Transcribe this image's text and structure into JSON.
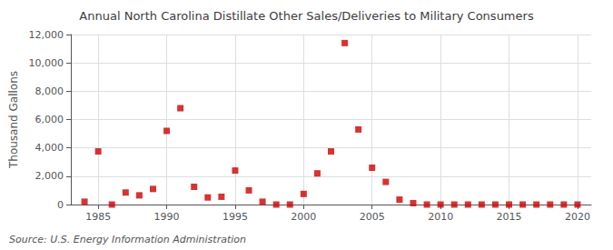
{
  "chart_data": {
    "type": "scatter",
    "title": "Annual North Carolina Distillate Other Sales/Deliveries to Military Consumers",
    "ylabel": "Thousand Gallons",
    "annotation": "Source: U.S. Energy Information Administration",
    "x": [
      1984,
      1985,
      1986,
      1987,
      1988,
      1989,
      1990,
      1991,
      1992,
      1993,
      1994,
      1995,
      1996,
      1997,
      1998,
      1999,
      2000,
      2001,
      2002,
      2003,
      2004,
      2005,
      2006,
      2007,
      2008,
      2009,
      2010,
      2011,
      2012,
      2013,
      2014,
      2015,
      2016,
      2017,
      2018,
      2019,
      2020
    ],
    "values": [
      200,
      3750,
      0,
      850,
      650,
      1100,
      5200,
      6800,
      1250,
      500,
      550,
      2400,
      1000,
      200,
      0,
      0,
      750,
      2200,
      3750,
      11400,
      5300,
      2600,
      1600,
      350,
      100,
      0,
      0,
      0,
      0,
      0,
      0,
      0,
      0,
      0,
      0,
      0,
      0
    ],
    "color": "#cc0000",
    "marker": "square",
    "xlim": [
      1983,
      2021
    ],
    "xticks": [
      1985,
      1990,
      1995,
      2000,
      2005,
      2010,
      2015,
      2020
    ],
    "ylim": [
      0,
      12000
    ],
    "yticks": [
      0,
      {
        "value": 2000,
        "label": "2,000"
      },
      {
        "value": 4000,
        "label": "4,000"
      },
      {
        "value": 6000,
        "label": "6,000"
      },
      {
        "value": 8000,
        "label": "8,000"
      },
      {
        "value": 10000,
        "label": "10,000"
      },
      {
        "value": 12000,
        "label": "12,000"
      }
    ],
    "grid": true
  }
}
